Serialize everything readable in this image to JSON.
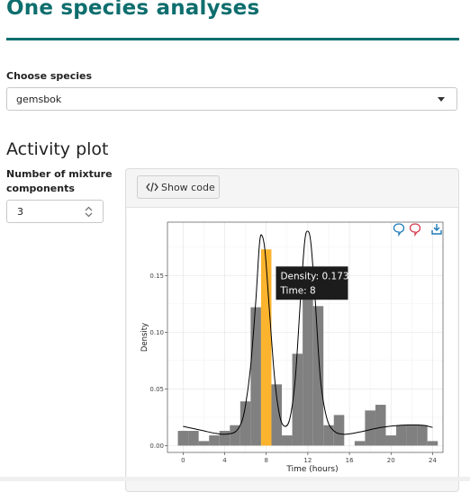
{
  "header": {
    "title": "One species analyses"
  },
  "species": {
    "label": "Choose species",
    "selected": "gemsbok"
  },
  "activity": {
    "title": "Activity plot",
    "mixture": {
      "label_line1": "Number of mixture",
      "label_line2": "components",
      "value": "3"
    },
    "show_code_label": "Show code"
  },
  "chart_data": {
    "type": "bar",
    "xlabel": "Time (hours)",
    "ylabel": "Density",
    "xlim": [
      -1.5,
      25
    ],
    "ylim": [
      -0.006,
      0.197
    ],
    "xticks": [
      "0",
      "4",
      "8",
      "12",
      "16",
      "20",
      "24"
    ],
    "yticks": [
      "0.00",
      "0.05",
      "0.10",
      "0.15"
    ],
    "grid": true,
    "bin_width": 1,
    "bins": [
      {
        "x": 0,
        "y": 0.013
      },
      {
        "x": 1,
        "y": 0.013
      },
      {
        "x": 2,
        "y": 0.004
      },
      {
        "x": 3,
        "y": 0.009
      },
      {
        "x": 4,
        "y": 0.013
      },
      {
        "x": 5,
        "y": 0.018
      },
      {
        "x": 6,
        "y": 0.039
      },
      {
        "x": 7,
        "y": 0.122
      },
      {
        "x": 8,
        "y": 0.173
      },
      {
        "x": 9,
        "y": 0.054
      },
      {
        "x": 10,
        "y": 0.009
      },
      {
        "x": 11,
        "y": 0.081
      },
      {
        "x": 12,
        "y": 0.137
      },
      {
        "x": 13,
        "y": 0.123
      },
      {
        "x": 14,
        "y": 0.018
      },
      {
        "x": 15,
        "y": 0.027
      },
      {
        "x": 16,
        "y": 0.0
      },
      {
        "x": 17,
        "y": 0.004
      },
      {
        "x": 18,
        "y": 0.031
      },
      {
        "x": 19,
        "y": 0.036
      },
      {
        "x": 20,
        "y": 0.009
      },
      {
        "x": 21,
        "y": 0.018
      },
      {
        "x": 22,
        "y": 0.018
      },
      {
        "x": 23,
        "y": 0.018
      },
      {
        "x": 24,
        "y": 0.004
      }
    ],
    "highlight_bin": 8,
    "density_curve": [
      [
        0,
        0.017
      ],
      [
        1,
        0.015
      ],
      [
        2,
        0.013
      ],
      [
        3,
        0.011
      ],
      [
        4,
        0.01
      ],
      [
        5,
        0.012
      ],
      [
        5.6,
        0.02
      ],
      [
        6,
        0.035
      ],
      [
        6.5,
        0.07
      ],
      [
        7,
        0.128
      ],
      [
        7.35,
        0.178
      ],
      [
        7.6,
        0.185
      ],
      [
        7.9,
        0.17
      ],
      [
        8.3,
        0.12
      ],
      [
        8.8,
        0.06
      ],
      [
        9.3,
        0.026
      ],
      [
        9.8,
        0.017
      ],
      [
        10.3,
        0.025
      ],
      [
        10.8,
        0.06
      ],
      [
        11.3,
        0.13
      ],
      [
        11.7,
        0.18
      ],
      [
        12,
        0.189
      ],
      [
        12.3,
        0.178
      ],
      [
        12.7,
        0.13
      ],
      [
        13.2,
        0.06
      ],
      [
        13.8,
        0.025
      ],
      [
        14.5,
        0.013
      ],
      [
        15.5,
        0.01
      ],
      [
        17,
        0.012
      ],
      [
        19,
        0.016
      ],
      [
        21,
        0.018
      ],
      [
        23,
        0.018
      ],
      [
        24,
        0.016
      ]
    ],
    "tooltip": {
      "line1": "Density: 0.173",
      "line2": "Time: 8"
    },
    "colors": {
      "bar": "#808080",
      "highlight": "#fcb42e",
      "curve": "#000000",
      "accent": "#0f6e6e"
    },
    "toolbar_icons": [
      "hover-closest-icon",
      "compare-hover-icon",
      "download-icon"
    ]
  }
}
